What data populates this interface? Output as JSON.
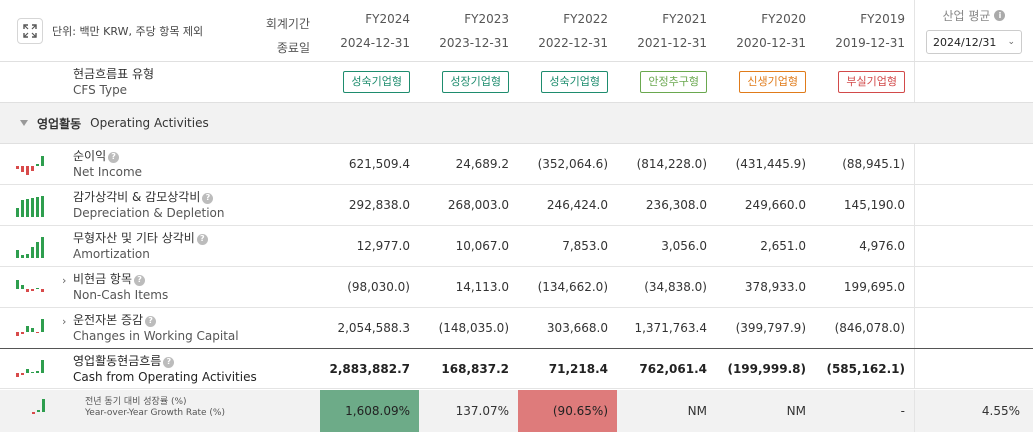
{
  "header": {
    "unit_text": "단위: 백만 KRW, 주당 항목 제외",
    "period_label": "회계기간",
    "end_label": "종료일",
    "columns": [
      {
        "fy": "FY2024",
        "date": "2024-12-31"
      },
      {
        "fy": "FY2023",
        "date": "2023-12-31"
      },
      {
        "fy": "FY2022",
        "date": "2022-12-31"
      },
      {
        "fy": "FY2021",
        "date": "2021-12-31"
      },
      {
        "fy": "FY2020",
        "date": "2020-12-31"
      },
      {
        "fy": "FY2019",
        "date": "2019-12-31"
      }
    ],
    "industry_avg_label": "산업 평균",
    "industry_avg_select": "2024/12/31"
  },
  "cfs_type": {
    "label_ko": "현금흐름표 유형",
    "label_en": "CFS Type",
    "badges": [
      {
        "text": "성숙기업형",
        "color": "#1e8c6e"
      },
      {
        "text": "성장기업형",
        "color": "#1e8c6e"
      },
      {
        "text": "성숙기업형",
        "color": "#1e8c6e"
      },
      {
        "text": "안정추구형",
        "color": "#6aa84f"
      },
      {
        "text": "신생기업형",
        "color": "#e07b1a"
      },
      {
        "text": "부실기업형",
        "color": "#d24a4a"
      }
    ]
  },
  "section": {
    "label_ko": "영업활동",
    "label_en": "Operating Activities"
  },
  "rows": [
    {
      "ko": "순이익",
      "en": "Net Income",
      "expandable": false,
      "values": [
        "621,509.4",
        "24,689.2",
        "(352,064.6)",
        "(814,228.0)",
        "(431,445.9)",
        "(88,945.1)"
      ]
    },
    {
      "ko": "감가상각비 & 감모상각비",
      "en": "Depreciation & Depletion",
      "expandable": false,
      "values": [
        "292,838.0",
        "268,003.0",
        "246,424.0",
        "236,308.0",
        "249,660.0",
        "145,190.0"
      ]
    },
    {
      "ko": "무형자산 및 기타 상각비",
      "en": "Amortization",
      "expandable": false,
      "values": [
        "12,977.0",
        "10,067.0",
        "7,853.0",
        "3,056.0",
        "2,651.0",
        "4,976.0"
      ]
    },
    {
      "ko": "비현금 항목",
      "en": "Non-Cash Items",
      "expandable": true,
      "values": [
        "(98,030.0)",
        "14,113.0",
        "(134,662.0)",
        "(34,838.0)",
        "378,933.0",
        "199,695.0"
      ]
    },
    {
      "ko": "운전자본 증감",
      "en": "Changes in Working Capital",
      "expandable": true,
      "values": [
        "2,054,588.3",
        "(148,035.0)",
        "303,668.0",
        "1,371,763.4",
        "(399,797.9)",
        "(846,078.0)"
      ]
    },
    {
      "ko": "영업활동현금흐름",
      "en": "Cash from Operating Activities",
      "expandable": false,
      "values": [
        "2,883,882.7",
        "168,837.2",
        "71,218.4",
        "762,061.4",
        "(199,999.8)",
        "(585,162.1)"
      ]
    }
  ],
  "growth": {
    "label_ko": "전년 동기 대비 성장률 (%)",
    "label_en": "Year-over-Year Growth Rate (%)",
    "values": [
      "1,608.09%",
      "137.07%",
      "(90.65%)",
      "NM",
      "NM",
      "-"
    ],
    "industry_avg": "4.55%",
    "colors": {
      "positive": "#6dab88",
      "negative": "#de7b7b"
    }
  }
}
